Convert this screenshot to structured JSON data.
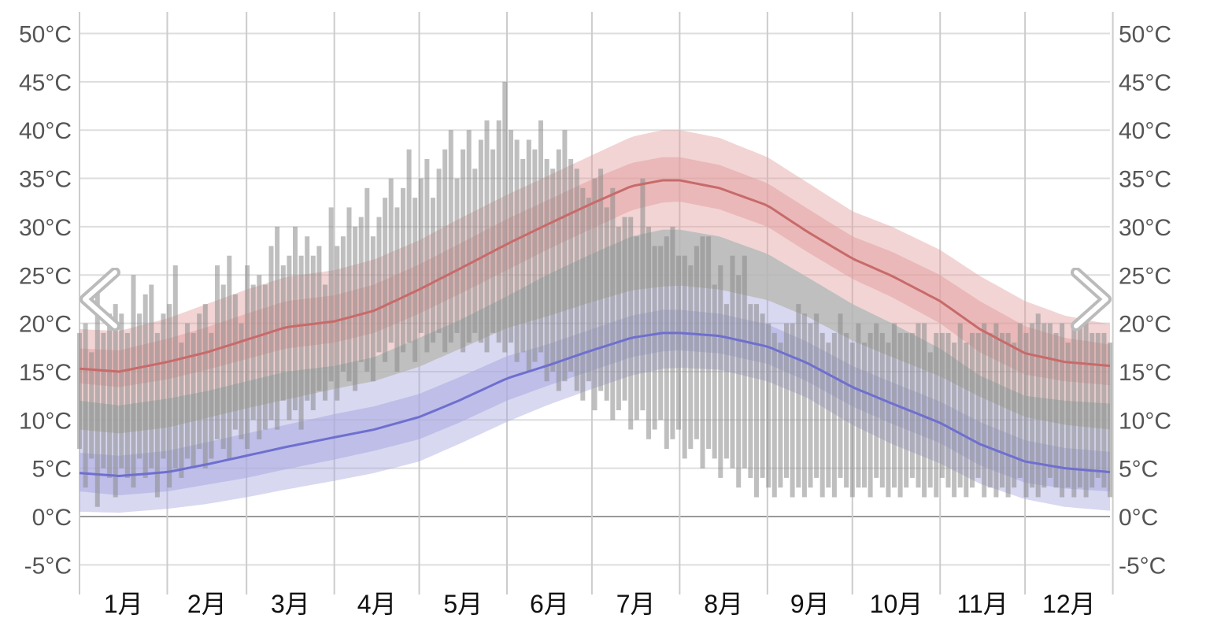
{
  "chart_data": {
    "type": "area",
    "title": "",
    "xlabel": "",
    "ylabel": "",
    "ylim": [
      -7,
      52
    ],
    "yticks": [
      -5,
      0,
      5,
      10,
      15,
      20,
      25,
      30,
      35,
      40,
      45,
      50
    ],
    "ytick_labels": [
      "-5°C",
      "0°C",
      "5°C",
      "10°C",
      "15°C",
      "20°C",
      "25°C",
      "30°C",
      "35°C",
      "40°C",
      "45°C",
      "50°C"
    ],
    "months": [
      "1月",
      "2月",
      "3月",
      "4月",
      "5月",
      "6月",
      "7月",
      "8月",
      "9月",
      "10月",
      "11月",
      "12月"
    ],
    "grid": true,
    "colors": {
      "high_band": "#e3a0a0",
      "high_line": "#c86a6a",
      "low_band": "#a9a9e0",
      "low_line": "#6f6fcf",
      "daily_bar": "#8a8a8a",
      "gray_band": "#b4b4b4",
      "grid": "#dddddd"
    },
    "series": [
      {
        "key": "high",
        "x_day": [
          1,
          15,
          32,
          46,
          60,
          74,
          91,
          105,
          121,
          135,
          152,
          166,
          182,
          196,
          207,
          213,
          227,
          244,
          258,
          274,
          288,
          305,
          319,
          335,
          349,
          365
        ],
        "mean": [
          15.3,
          15.0,
          16.0,
          17.0,
          18.3,
          19.6,
          20.2,
          21.3,
          23.5,
          25.6,
          28.2,
          30.2,
          32.4,
          34.2,
          34.8,
          34.8,
          34.0,
          32.2,
          29.5,
          26.7,
          24.9,
          22.3,
          19.4,
          16.9,
          16.0,
          15.6
        ],
        "p25": [
          13.8,
          13.4,
          14.2,
          15.2,
          16.3,
          17.4,
          18.0,
          19.0,
          21.0,
          23.0,
          25.5,
          27.6,
          29.8,
          31.7,
          32.5,
          32.6,
          31.8,
          30.0,
          27.4,
          24.6,
          22.7,
          20.0,
          17.0,
          14.7,
          14.0,
          13.6
        ],
        "p75": [
          17.4,
          17.2,
          18.4,
          19.6,
          21.0,
          22.3,
          22.9,
          24.0,
          26.1,
          28.2,
          30.8,
          32.7,
          34.9,
          36.6,
          37.2,
          37.2,
          36.4,
          34.5,
          31.9,
          29.0,
          27.4,
          25.0,
          22.3,
          19.7,
          18.5,
          17.8
        ],
        "p10": [
          12.0,
          11.5,
          12.2,
          13.0,
          14.0,
          15.0,
          15.6,
          16.5,
          18.5,
          20.3,
          22.8,
          25.0,
          27.2,
          29.0,
          29.7,
          29.7,
          29.0,
          27.2,
          24.8,
          22.0,
          20.0,
          17.4,
          14.6,
          12.5,
          12.0,
          11.7
        ],
        "p90": [
          19.4,
          19.2,
          20.5,
          22.0,
          23.5,
          24.8,
          25.5,
          26.6,
          28.6,
          30.8,
          33.3,
          35.2,
          37.4,
          39.3,
          40.0,
          40.0,
          39.2,
          37.2,
          34.6,
          31.6,
          30.0,
          27.6,
          24.9,
          22.3,
          20.8,
          19.9
        ]
      },
      {
        "key": "low",
        "x_day": [
          1,
          15,
          32,
          46,
          60,
          74,
          91,
          105,
          121,
          135,
          152,
          166,
          182,
          196,
          207,
          213,
          227,
          244,
          258,
          274,
          288,
          305,
          319,
          335,
          349,
          365
        ],
        "mean": [
          4.5,
          4.2,
          4.6,
          5.4,
          6.3,
          7.2,
          8.2,
          9.0,
          10.3,
          12.0,
          14.3,
          15.6,
          17.2,
          18.5,
          19.0,
          19.0,
          18.7,
          17.6,
          15.9,
          13.4,
          11.7,
          9.7,
          7.5,
          5.7,
          5.0,
          4.6
        ],
        "p25": [
          2.6,
          2.2,
          2.6,
          3.3,
          4.0,
          4.9,
          5.9,
          6.8,
          8.0,
          9.7,
          12.0,
          13.5,
          15.1,
          16.5,
          17.1,
          17.2,
          16.9,
          15.8,
          14.0,
          11.4,
          9.6,
          7.6,
          5.3,
          3.5,
          2.9,
          2.6
        ],
        "p75": [
          6.6,
          6.3,
          6.8,
          7.7,
          8.6,
          9.5,
          10.6,
          11.4,
          12.7,
          14.4,
          16.6,
          17.8,
          19.4,
          20.8,
          21.4,
          21.4,
          21.0,
          19.9,
          18.1,
          15.6,
          13.9,
          11.9,
          9.8,
          7.9,
          7.1,
          6.7
        ],
        "p10": [
          0.5,
          0.4,
          0.8,
          1.3,
          2.0,
          2.8,
          3.7,
          4.5,
          5.7,
          7.5,
          9.8,
          11.5,
          13.2,
          14.6,
          15.3,
          15.4,
          15.2,
          14.0,
          12.3,
          9.5,
          7.5,
          5.5,
          3.4,
          1.8,
          1.0,
          0.6
        ],
        "p90": [
          9.0,
          8.6,
          9.2,
          10.2,
          11.2,
          12.1,
          13.2,
          14.0,
          15.5,
          17.3,
          19.5,
          20.7,
          22.2,
          23.4,
          23.8,
          23.9,
          23.5,
          22.4,
          20.7,
          18.2,
          16.5,
          14.5,
          12.4,
          10.3,
          9.5,
          9.0
        ]
      }
    ],
    "daily": {
      "note_values": "approximate daily maxima (start of each 5-day step)",
      "highs": [
        19,
        20,
        17,
        24,
        19,
        21,
        22,
        21,
        19,
        25,
        21,
        23,
        24,
        19,
        21,
        22,
        26,
        18,
        20,
        19,
        21,
        22,
        19,
        26,
        24,
        27,
        23,
        20,
        26,
        24,
        25,
        24,
        28,
        30,
        26,
        27,
        30,
        27,
        29,
        27,
        28,
        24,
        32,
        28,
        29,
        32,
        30,
        31,
        34,
        29,
        31,
        33,
        35,
        32,
        34,
        38,
        33,
        35,
        37,
        33,
        36,
        38,
        40,
        35,
        38,
        40,
        36,
        39,
        41,
        38,
        41,
        45,
        40,
        39,
        37,
        39,
        38,
        41,
        37,
        36,
        38,
        40,
        37,
        36,
        34,
        33,
        35,
        36,
        32,
        34,
        30,
        31,
        31,
        29,
        35,
        30,
        28,
        28,
        29,
        30,
        27,
        27,
        26,
        28,
        29,
        29,
        24,
        26,
        22,
        27,
        25,
        27,
        22,
        22,
        21,
        20,
        19,
        18,
        20,
        20,
        22,
        21,
        20,
        21,
        19,
        18,
        19,
        21,
        19,
        18,
        20,
        18,
        19,
        20,
        19,
        18,
        20,
        19,
        19,
        19,
        20,
        20,
        17,
        19,
        19,
        19,
        18,
        20,
        18,
        19,
        19,
        20,
        19,
        20,
        19,
        19,
        18,
        20,
        19,
        20,
        21,
        20,
        20,
        19,
        20,
        18,
        20,
        20,
        20,
        19,
        19,
        19,
        18
      ],
      "lows": [
        7,
        3,
        6,
        1,
        5,
        4,
        2,
        5,
        4,
        3,
        6,
        4,
        5,
        2,
        6,
        3,
        5,
        4,
        6,
        5,
        7,
        5,
        6,
        8,
        7,
        6,
        9,
        8,
        7,
        10,
        8,
        9,
        10,
        9,
        12,
        10,
        11,
        9,
        12,
        11,
        13,
        12,
        14,
        12,
        15,
        14,
        13,
        16,
        15,
        14,
        17,
        16,
        18,
        15,
        17,
        18,
        16,
        19,
        17,
        18,
        19,
        17,
        18,
        19,
        17,
        18,
        19,
        18,
        17,
        19,
        18,
        17,
        18,
        16,
        17,
        15,
        16,
        17,
        14,
        15,
        13,
        14,
        15,
        13,
        12,
        14,
        11,
        13,
        12,
        10,
        11,
        12,
        9,
        10,
        11,
        8,
        9,
        10,
        7,
        8,
        9,
        6,
        7,
        8,
        5,
        7,
        6,
        4,
        6,
        5,
        3,
        5,
        4,
        2,
        4,
        3,
        2,
        3,
        4,
        2,
        3,
        2,
        3,
        4,
        2,
        3,
        2,
        4,
        3,
        2,
        3,
        3,
        2,
        4,
        3,
        2,
        3,
        2,
        3,
        4,
        3,
        2,
        3,
        2,
        4,
        3,
        2,
        3,
        2,
        3,
        4,
        2,
        3,
        2,
        3,
        2,
        3,
        4,
        2,
        3,
        2,
        3,
        4,
        3,
        2,
        3,
        2,
        3,
        2,
        3,
        4,
        3,
        2
      ]
    }
  },
  "navigation": {
    "prev_label": "previous",
    "next_label": "next"
  }
}
